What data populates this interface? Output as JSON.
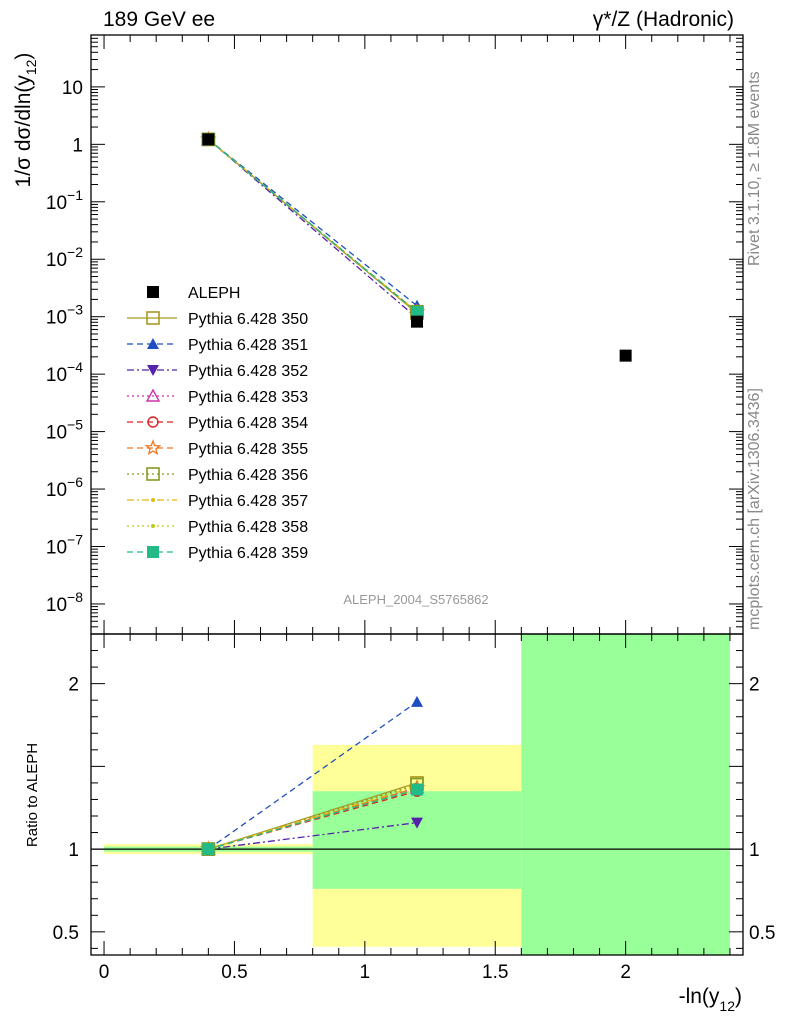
{
  "header": {
    "left": "189 GeV ee",
    "right_prefix": "γ*/Z (Hadronic)"
  },
  "side_texts": {
    "top": "Rivet 3.1.10, ≥ 1.8M events",
    "bottom": "mcplots.cern.ch [arXiv:1306.3436]"
  },
  "watermark": "ALEPH_2004_S5765862",
  "colors": {
    "yellow_band": "#ffff99",
    "green_band": "#99ff99",
    "data": "#000000"
  },
  "chart_data": [
    {
      "type": "scatter",
      "title": "",
      "ylabel": "1/σ dσ/dln(y12)",
      "yscale": "log",
      "ylim": [
        3e-09,
        80
      ],
      "xlim": [
        -0.05,
        2.45
      ],
      "y_tick_labels": [
        "10",
        "1",
        "10^-1",
        "10^-2",
        "10^-3",
        "10^-4",
        "10^-5",
        "10^-6",
        "10^-7",
        "10^-8"
      ],
      "legend_position": "left-middle",
      "data_series": {
        "name": "ALEPH",
        "x": [
          0.4,
          1.2,
          2.0
        ],
        "y": [
          1.22,
          0.00082,
          0.00021
        ],
        "color": "#000000",
        "marker": "square"
      },
      "mc_x": [
        0.4,
        1.2
      ],
      "series": [
        {
          "name": "Pythia 6.428 350",
          "values": [
            1.22,
            0.00115
          ],
          "color": "#a89a24",
          "dash": "solid",
          "marker": "open-square"
        },
        {
          "name": "Pythia 6.428 351",
          "values": [
            1.22,
            0.00155
          ],
          "color": "#1f4fbf",
          "dash": "dashed",
          "marker": "triangle-up"
        },
        {
          "name": "Pythia 6.428 352",
          "values": [
            1.22,
            0.00095
          ],
          "color": "#5522aa",
          "dash": "dashdot",
          "marker": "triangle-down"
        },
        {
          "name": "Pythia 6.428 353",
          "values": [
            1.22,
            0.00121
          ],
          "color": "#cc33aa",
          "dash": "dotted",
          "marker": "open-triangle"
        },
        {
          "name": "Pythia 6.428 354",
          "values": [
            1.22,
            0.0012
          ],
          "color": "#dd2222",
          "dash": "dashed",
          "marker": "open-circle"
        },
        {
          "name": "Pythia 6.428 355",
          "values": [
            1.22,
            0.00121
          ],
          "color": "#ee7722",
          "dash": "dashed",
          "marker": "open-star"
        },
        {
          "name": "Pythia 6.428 356",
          "values": [
            1.22,
            0.00122
          ],
          "color": "#889922",
          "dash": "dotted",
          "marker": "open-square"
        },
        {
          "name": "Pythia 6.428 357",
          "values": [
            1.22,
            0.00121
          ],
          "color": "#ddbb11",
          "dash": "dashdot",
          "marker": "small-dot"
        },
        {
          "name": "Pythia 6.428 358",
          "values": [
            1.22,
            0.0012
          ],
          "color": "#bbcc11",
          "dash": "dotted",
          "marker": "small-dot"
        },
        {
          "name": "Pythia 6.428 359",
          "values": [
            1.22,
            0.0012
          ],
          "color": "#22bb88",
          "dash": "dashed",
          "marker": "square"
        }
      ]
    },
    {
      "type": "line",
      "ylabel": "Ratio to ALEPH",
      "xlabel": "-ln(y12)",
      "ylim": [
        0.36,
        2.3
      ],
      "xlim": [
        -0.05,
        2.45
      ],
      "x_tick_labels": [
        "0",
        "0.5",
        "1",
        "1.5",
        "2"
      ],
      "y_tick_labels": [
        "0.5",
        "1",
        "2"
      ],
      "bands": [
        {
          "x0": 0.0,
          "x1": 0.8,
          "yellow": [
            0.97,
            1.03
          ],
          "green": [
            0.985,
            1.015
          ]
        },
        {
          "x0": 0.8,
          "x1": 1.6,
          "yellow": [
            0.41,
            1.63
          ],
          "green": [
            0.76,
            1.35
          ]
        },
        {
          "x0": 1.6,
          "x1": 2.4,
          "yellow": [
            0.36,
            2.3
          ],
          "green": [
            0.36,
            2.3
          ]
        }
      ],
      "x": [
        0.4,
        1.2
      ],
      "series": [
        {
          "name": "Pythia 6.428 350",
          "values": [
            1.0,
            1.4
          ]
        },
        {
          "name": "Pythia 6.428 351",
          "values": [
            1.0,
            1.89
          ]
        },
        {
          "name": "Pythia 6.428 352",
          "values": [
            1.0,
            1.16
          ]
        },
        {
          "name": "Pythia 6.428 353",
          "values": [
            1.0,
            1.37
          ]
        },
        {
          "name": "Pythia 6.428 354",
          "values": [
            1.0,
            1.35
          ]
        },
        {
          "name": "Pythia 6.428 355",
          "values": [
            1.0,
            1.37
          ]
        },
        {
          "name": "Pythia 6.428 356",
          "values": [
            1.0,
            1.39
          ]
        },
        {
          "name": "Pythia 6.428 357",
          "values": [
            1.0,
            1.38
          ]
        },
        {
          "name": "Pythia 6.428 358",
          "values": [
            1.0,
            1.36
          ]
        },
        {
          "name": "Pythia 6.428 359",
          "values": [
            1.0,
            1.36
          ]
        }
      ]
    }
  ]
}
